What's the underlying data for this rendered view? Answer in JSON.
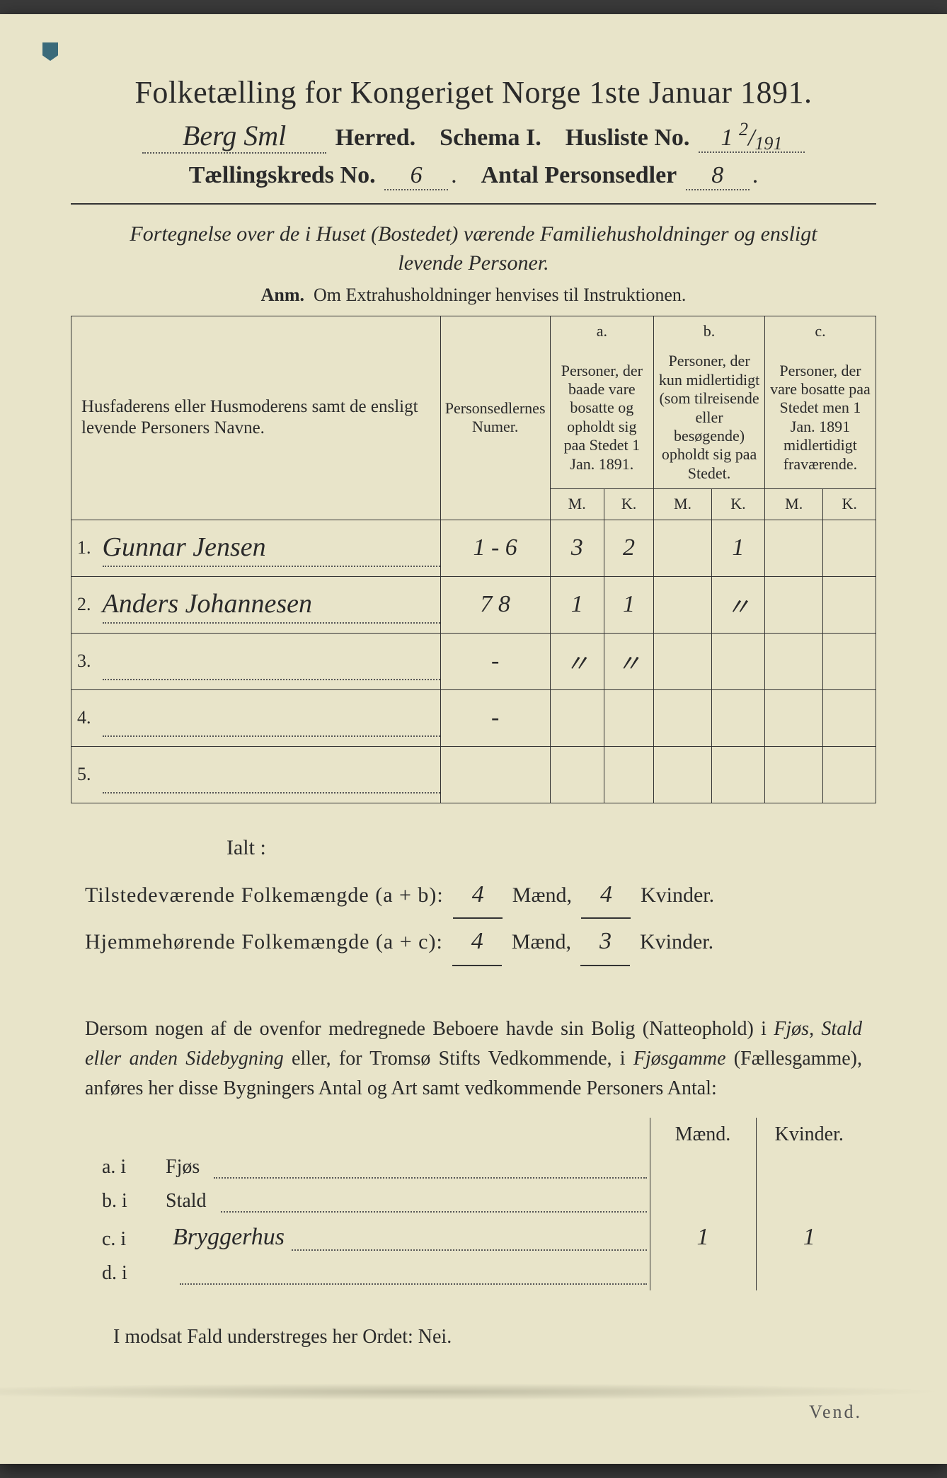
{
  "title": "Folketælling for Kongeriget Norge 1ste Januar 1891.",
  "line2": {
    "herred_value": "Berg Sml",
    "herred_label": "Herred.",
    "schema_label": "Schema I.",
    "husliste_label": "Husliste No.",
    "husliste_value_main": "1",
    "husliste_value_top": "2",
    "husliste_value_bot": "191"
  },
  "line3": {
    "kreds_label": "Tællingskreds No.",
    "kreds_value": "6",
    "antal_label": "Antal Personsedler",
    "antal_value": "8"
  },
  "intro": "Fortegnelse over de i Huset (Bostedet) værende Familiehusholdninger og ensligt levende Personer.",
  "anm_bold": "Anm.",
  "anm_text": "Om Extrahusholdninger henvises til Instruktionen.",
  "table": {
    "head_names": "Husfaderens eller Husmoderens samt de ensligt levende Personers Navne.",
    "head_numer": "Personsedlernes Numer.",
    "head_a_tag": "a.",
    "head_a": "Personer, der baade vare bosatte og opholdt sig paa Stedet 1 Jan. 1891.",
    "head_b_tag": "b.",
    "head_b": "Personer, der kun midlertidigt (som tilreisende eller besøgende) opholdt sig paa Stedet.",
    "head_c_tag": "c.",
    "head_c": "Personer, der vare bosatte paa Stedet men 1 Jan. 1891 midlertidigt fraværende.",
    "mk_m": "M.",
    "mk_k": "K.",
    "rows": [
      {
        "n": "1.",
        "name": "Gunnar Jensen",
        "numer": "1 - 6",
        "aM": "3",
        "aK": "2",
        "bM": "",
        "bK": "1",
        "cM": "",
        "cK": ""
      },
      {
        "n": "2.",
        "name": "Anders Johannesen",
        "numer": "7  8",
        "aM": "1",
        "aK": "1",
        "bM": "",
        "bK": "〃",
        "cM": "",
        "cK": ""
      },
      {
        "n": "3.",
        "name": "",
        "numer": "-",
        "aM": "〃",
        "aK": "〃",
        "bM": "",
        "bK": "",
        "cM": "",
        "cK": ""
      },
      {
        "n": "4.",
        "name": "",
        "numer": "-",
        "aM": "",
        "aK": "",
        "bM": "",
        "bK": "",
        "cM": "",
        "cK": ""
      },
      {
        "n": "5.",
        "name": "",
        "numer": "",
        "aM": "",
        "aK": "",
        "bM": "",
        "bK": "",
        "cM": "",
        "cK": ""
      }
    ],
    "ialt": "Ialt :"
  },
  "totals": {
    "tilst_label": "Tilstedeværende Folkemængde (a + b):",
    "tilst_m": "4",
    "tilst_k": "4",
    "hjem_label": "Hjemmehørende Folkemængde (a + c):",
    "hjem_m": "4",
    "hjem_k": "3",
    "maend": "Mænd,",
    "kvinder": "Kvinder."
  },
  "para": {
    "t1": "Dersom nogen af de ovenfor medregnede Beboere havde sin Bolig (Natteophold) i ",
    "i1": "Fjøs, Stald eller anden Sidebygning",
    "t2": " eller, for Tromsø Stifts Vedkommende, i ",
    "i2": "Fjøsgamme",
    "t3": " (Fællesgamme), anføres her disse Bygningers Antal og Art samt vedkommende Personers Antal:"
  },
  "bygn": {
    "head_m": "Mænd.",
    "head_k": "Kvinder.",
    "rows": [
      {
        "tag": "a.  i",
        "label": "Fjøs",
        "extra": "",
        "m": "",
        "k": ""
      },
      {
        "tag": "b.  i",
        "label": "Stald",
        "extra": "",
        "m": "",
        "k": ""
      },
      {
        "tag": "c.  i",
        "label": "",
        "extra": "Bryggerhus",
        "m": "1",
        "k": "1"
      },
      {
        "tag": "d.  i",
        "label": "",
        "extra": "",
        "m": "",
        "k": ""
      }
    ]
  },
  "modsat": "I modsat Fald understreges her Ordet: Nei.",
  "vend": "Vend.",
  "colors": {
    "paper": "#e8e4c9",
    "ink": "#2a2a2a",
    "rule": "#333333",
    "dot": "#555555",
    "corner": "#3a6a7a"
  }
}
